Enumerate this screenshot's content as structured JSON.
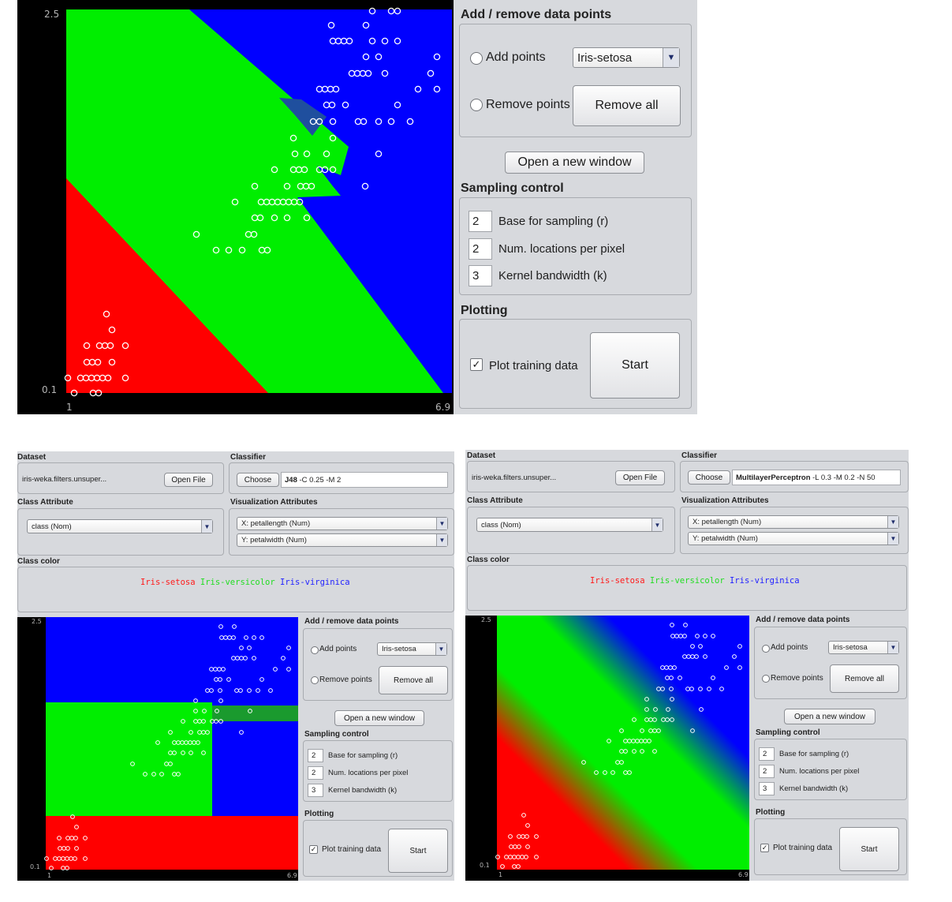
{
  "top": {
    "plot": {
      "y_max": "2.5",
      "y_min": "0.1",
      "x_min": "1",
      "x_max": "6.9"
    },
    "panel": {
      "add_remove_title": "Add / remove data points",
      "add_points_label": "Add points",
      "class_select_value": "Iris-setosa",
      "remove_points_label": "Remove points",
      "remove_all_label": "Remove all",
      "open_window_label": "Open a new window",
      "sampling_title": "Sampling control",
      "base_value": "2",
      "base_label": "Base for sampling (r)",
      "locations_value": "2",
      "locations_label": "Num. locations per pixel",
      "bandwidth_value": "3",
      "bandwidth_label": "Kernel bandwidth (k)",
      "plotting_title": "Plotting",
      "plot_training_label": "Plot training data",
      "start_label": "Start"
    }
  },
  "left": {
    "dataset_title": "Dataset",
    "dataset_value": "iris-weka.filters.unsuper...",
    "open_file_label": "Open File",
    "classifier_title": "Classifier",
    "choose_label": "Choose",
    "classifier_name": "J48",
    "classifier_options": "-C 0.25 -M 2",
    "class_attr_title": "Class Attribute",
    "class_attr_value": "class (Nom)",
    "vis_attr_title": "Visualization Attributes",
    "x_attr": "X: petallength (Num)",
    "y_attr": "Y: petalwidth (Num)",
    "class_color_title": "Class color",
    "class_colors": [
      "Iris-setosa",
      "Iris-versicolor",
      "Iris-virginica"
    ],
    "plot": {
      "y_max": "2.5",
      "y_min": "0.1",
      "x_min": "1",
      "x_max": "6.9"
    },
    "panel": {
      "add_remove_title": "Add / remove data points",
      "add_points_label": "Add points",
      "class_select_value": "Iris-setosa",
      "remove_points_label": "Remove points",
      "remove_all_label": "Remove all",
      "open_window_label": "Open a new window",
      "sampling_title": "Sampling control",
      "base_value": "2",
      "base_label": "Base for sampling (r)",
      "locations_value": "2",
      "locations_label": "Num. locations per pixel",
      "bandwidth_value": "3",
      "bandwidth_label": "Kernel bandwidth (k)",
      "plotting_title": "Plotting",
      "plot_training_label": "Plot training data",
      "start_label": "Start"
    }
  },
  "right": {
    "dataset_title": "Dataset",
    "dataset_value": "iris-weka.filters.unsuper...",
    "open_file_label": "Open File",
    "classifier_title": "Classifier",
    "choose_label": "Choose",
    "classifier_name": "MultilayerPerceptron",
    "classifier_options": "-L 0.3 -M 0.2 -N 50",
    "class_attr_title": "Class Attribute",
    "class_attr_value": "class (Nom)",
    "vis_attr_title": "Visualization Attributes",
    "x_attr": "X: petallength (Num)",
    "y_attr": "Y: petalwidth (Num)",
    "class_color_title": "Class color",
    "class_colors": [
      "Iris-setosa",
      "Iris-versicolor",
      "Iris-virginica"
    ],
    "plot": {
      "y_max": "2.5",
      "y_min": "0.1",
      "x_min": "1",
      "x_max": "6.9"
    },
    "panel": {
      "add_remove_title": "Add / remove data points",
      "add_points_label": "Add points",
      "class_select_value": "Iris-setosa",
      "remove_points_label": "Remove points",
      "remove_all_label": "Remove all",
      "open_window_label": "Open a new window",
      "sampling_title": "Sampling control",
      "base_value": "2",
      "base_label": "Base for sampling (r)",
      "locations_value": "2",
      "locations_label": "Num. locations per pixel",
      "bandwidth_value": "3",
      "bandwidth_label": "Kernel bandwidth (k)",
      "plotting_title": "Plotting",
      "plot_training_label": "Plot training data",
      "start_label": "Start"
    }
  },
  "colors": {
    "setosa": "#ff0000",
    "versicolor": "#00ee00",
    "virginica": "#0000ff",
    "panel_bg": "#d7d9dd"
  },
  "icons": {
    "select_arrow": "chevron-down-icon",
    "checkbox": "check-icon"
  }
}
